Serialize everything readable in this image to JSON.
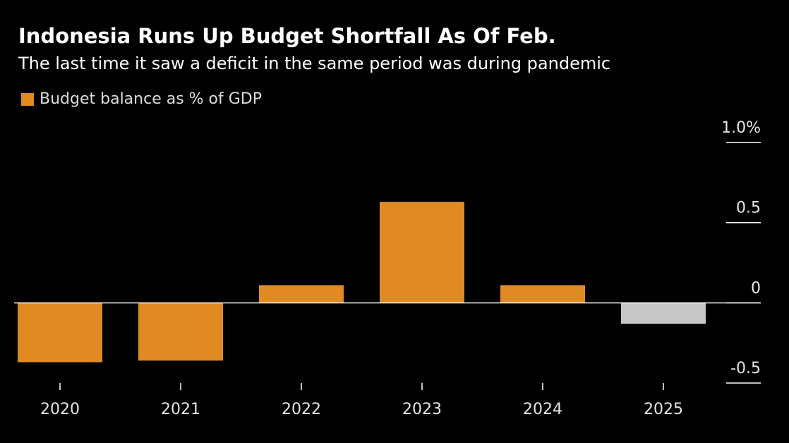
{
  "header": {
    "title": "Indonesia Runs Up Budget Shortfall As Of Feb.",
    "subtitle": "The last time it saw a deficit in the same period was during pandemic"
  },
  "chart_data": {
    "type": "bar",
    "categories": [
      "2020",
      "2021",
      "2022",
      "2023",
      "2024",
      "2025"
    ],
    "series": [
      {
        "name": "Budget balance as % of GDP",
        "values": [
          -0.37,
          -0.36,
          0.11,
          0.63,
          0.11,
          -0.13
        ]
      }
    ],
    "colors": [
      "#e08a24",
      "#e08a24",
      "#e08a24",
      "#e08a24",
      "#e08a24",
      "#c7c7c7"
    ],
    "ylim": [
      -0.5,
      1.0
    ],
    "yticks": [
      {
        "value": 1.0,
        "label": "1.0%"
      },
      {
        "value": 0.5,
        "label": "0.5"
      },
      {
        "value": 0,
        "label": "0"
      },
      {
        "value": -0.5,
        "label": "-0.5"
      }
    ],
    "legend_position": "top-left",
    "axis_color": "#ffffff",
    "tick_text_color": "#e6e6e6"
  }
}
